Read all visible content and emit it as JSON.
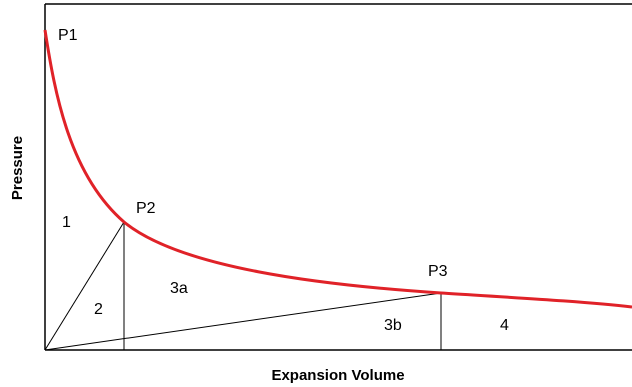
{
  "chart_data": {
    "type": "line",
    "xlabel": "Expansion Volume",
    "ylabel": "Pressure",
    "points": [
      {
        "label": "P1"
      },
      {
        "label": "P2"
      },
      {
        "label": "P3"
      }
    ],
    "regions": [
      "1",
      "2",
      "3a",
      "3b",
      "4"
    ],
    "colors": {
      "curve": "#e02228",
      "frame": "#000000",
      "lines": "#000000"
    }
  }
}
